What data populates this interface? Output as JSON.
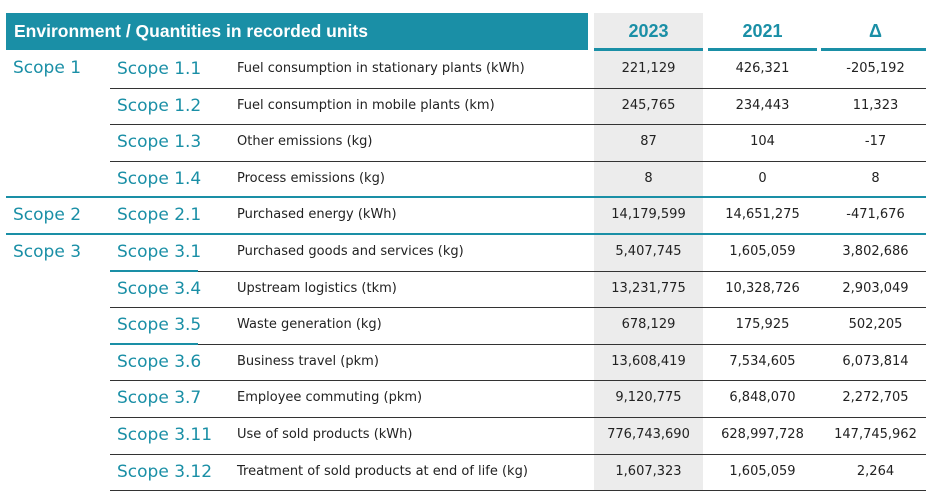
{
  "header": {
    "title": "Environment / Quantities in recorded units",
    "col_2023": "2023",
    "col_2021": "2021",
    "col_delta": "Δ"
  },
  "colors": {
    "accent": "#1a8fa6",
    "shade": "#ececec",
    "text": "#222222"
  },
  "scopes": [
    "Scope 1",
    "Scope 2",
    "Scope 3"
  ],
  "rows": [
    {
      "sub": "Scope 1.1",
      "desc": "Fuel consumption in stationary plants (kWh)",
      "v2023": "221,129",
      "v2021": "426,321",
      "delta": "-205,192"
    },
    {
      "sub": "Scope 1.2",
      "desc": "Fuel consumption in mobile plants (km)",
      "v2023": "245,765",
      "v2021": "234,443",
      "delta": "11,323"
    },
    {
      "sub": "Scope 1.3",
      "desc": "Other emissions (kg)",
      "v2023": "87",
      "v2021": "104",
      "delta": "-17"
    },
    {
      "sub": "Scope 1.4",
      "desc": "Process emissions (kg)",
      "v2023": "8",
      "v2021": "0",
      "delta": "8"
    },
    {
      "sub": "Scope 2.1",
      "desc": "Purchased energy (kWh)",
      "v2023": "14,179,599",
      "v2021": "14,651,275",
      "delta": "-471,676"
    },
    {
      "sub": "Scope 3.1",
      "desc": "Purchased goods and services (kg)",
      "v2023": "5,407,745",
      "v2021": "1,605,059",
      "delta": "3,802,686"
    },
    {
      "sub": "Scope 3.4",
      "desc": "Upstream logistics (tkm)",
      "v2023": "13,231,775",
      "v2021": "10,328,726",
      "delta": "2,903,049"
    },
    {
      "sub": "Scope 3.5",
      "desc": "Waste generation (kg)",
      "v2023": "678,129",
      "v2021": "175,925",
      "delta": "502,205"
    },
    {
      "sub": "Scope 3.6",
      "desc": "Business travel (pkm)",
      "v2023": "13,608,419",
      "v2021": "7,534,605",
      "delta": "6,073,814"
    },
    {
      "sub": "Scope 3.7",
      "desc": "Employee commuting (pkm)",
      "v2023": "9,120,775",
      "v2021": "6,848,070",
      "delta": "2,272,705"
    },
    {
      "sub": "Scope 3.11",
      "desc": "Use of sold products (kWh)",
      "v2023": "776,743,690",
      "v2021": "628,997,728",
      "delta": "147,745,962"
    },
    {
      "sub": "Scope 3.12",
      "desc": "Treatment of sold products at end of life  (kg)",
      "v2023": "1,607,323",
      "v2021": "1,605,059",
      "delta": "2,264"
    }
  ]
}
